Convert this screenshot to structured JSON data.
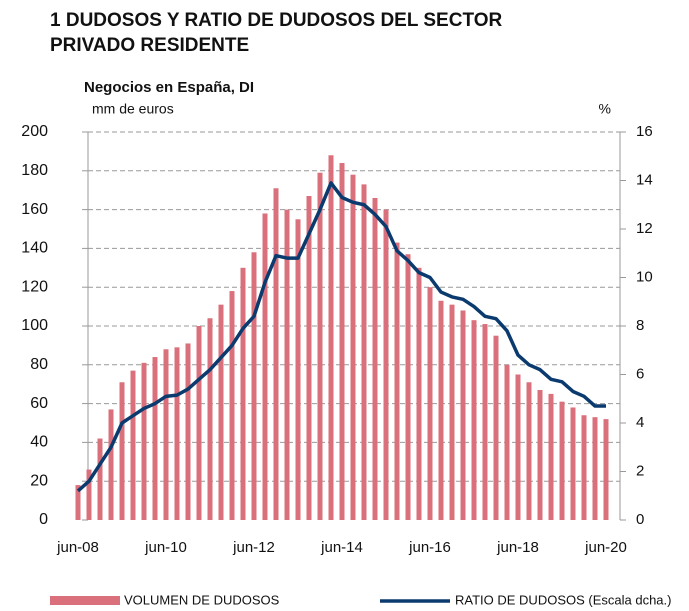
{
  "chart_data": {
    "type": "bar-line",
    "title": [
      "1  DUDOSOS Y RATIO DE DUDOSOS DEL SECTOR",
      "PRIVADO RESIDENTE"
    ],
    "subtitle": "Negocios en España, DI",
    "y_label": "mm de euros",
    "y2_label": "%",
    "categories": [
      "jun-08",
      null,
      null,
      null,
      null,
      null,
      null,
      null,
      "jun-10",
      null,
      null,
      null,
      null,
      null,
      null,
      null,
      "jun-12",
      null,
      null,
      null,
      null,
      null,
      null,
      null,
      "jun-14",
      null,
      null,
      null,
      null,
      null,
      null,
      null,
      "jun-16",
      null,
      null,
      null,
      null,
      null,
      null,
      null,
      "jun-18",
      null,
      null,
      null,
      null,
      null,
      null,
      null,
      "jun-20"
    ],
    "series": [
      {
        "name": "VOLUMEN DE DUDOSOS",
        "color": "#d9707c",
        "kind": "bar",
        "values": [
          18,
          26,
          42,
          57,
          71,
          77,
          81,
          84,
          88,
          89,
          91,
          100,
          104,
          111,
          118,
          130,
          138,
          158,
          171,
          160,
          155,
          167,
          179,
          188,
          184,
          178,
          173,
          166,
          160,
          143,
          137,
          130,
          120,
          113,
          111,
          108,
          103,
          101,
          95,
          80,
          75,
          71,
          67,
          65,
          61,
          58,
          54,
          53,
          52
        ]
      },
      {
        "name": "RATIO DE DUDOSOS (Escala dcha.)",
        "color": "#0b3a6e",
        "kind": "line",
        "axis": "y2",
        "values": [
          1.2,
          1.6,
          2.3,
          3.0,
          4.0,
          4.3,
          4.6,
          4.8,
          5.1,
          5.15,
          5.4,
          5.8,
          6.2,
          6.7,
          7.2,
          7.9,
          8.4,
          9.8,
          10.9,
          10.8,
          10.8,
          11.8,
          12.8,
          13.9,
          13.3,
          13.1,
          13.0,
          12.6,
          12.1,
          11.1,
          10.7,
          10.2,
          10.0,
          9.4,
          9.2,
          9.1,
          8.8,
          8.4,
          8.3,
          7.8,
          6.8,
          6.4,
          6.2,
          5.8,
          5.7,
          5.3,
          5.1,
          4.7,
          4.7
        ]
      }
    ],
    "ylim": [
      0,
      200
    ],
    "yticks": [
      0,
      20,
      40,
      60,
      80,
      100,
      120,
      140,
      160,
      180,
      200
    ],
    "y2lim": [
      0,
      16
    ],
    "y2ticks": [
      0,
      2,
      4,
      6,
      8,
      10,
      12,
      14,
      16
    ],
    "grid": true
  }
}
